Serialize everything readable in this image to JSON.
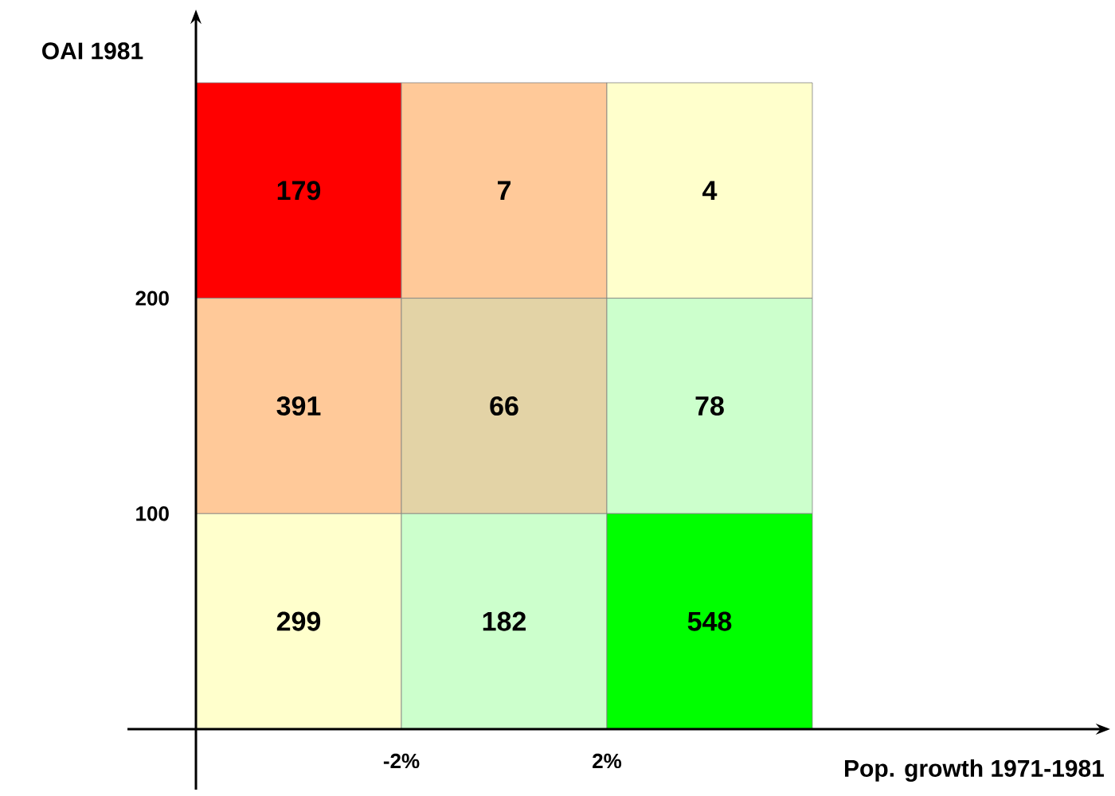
{
  "chart_data": {
    "type": "heatmap",
    "xlabel": "Pop. growth 1971-1981",
    "ylabel": "OAI 1981",
    "categories": [
      null,
      null,
      null
    ],
    "y_categories": [
      null,
      null,
      null
    ],
    "cells": [
      [
        179,
        7,
        4
      ],
      [
        391,
        66,
        78
      ],
      [
        299,
        182,
        548
      ]
    ],
    "colors": [
      [
        "#ff0000",
        "#ffc999",
        "#ffffcc"
      ],
      [
        "#ffc999",
        "#e3d3a6",
        "#ccffcc"
      ],
      [
        "#ffffcc",
        "#ccffcc",
        "#00ff00"
      ]
    ],
    "annotations": [
      "-2%",
      "2%",
      "100",
      "200"
    ],
    "data_labels": true
  }
}
